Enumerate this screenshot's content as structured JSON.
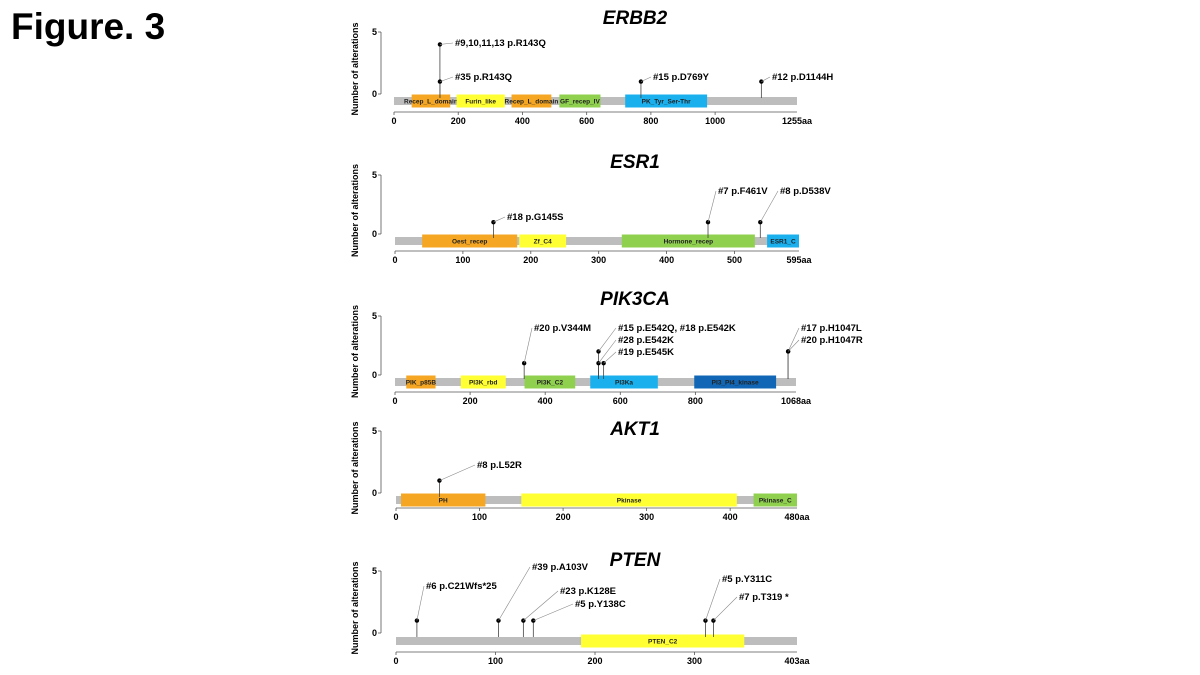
{
  "figure_label": "Figure. 3",
  "y_axis_label": "Number of alterations",
  "y_ticks": [
    0,
    5
  ],
  "panels": [
    {
      "gene": "ERBB2",
      "length": 1255,
      "length_label": "1255aa",
      "x_ticks": [
        0,
        200,
        400,
        600,
        800,
        1000
      ],
      "domains": [
        {
          "name": "Recep_L_domain",
          "start": 55,
          "end": 175,
          "color": "#f5a623"
        },
        {
          "name": "Furin_like",
          "start": 195,
          "end": 345,
          "color": "#ffff33"
        },
        {
          "name": "Recep_L_domain",
          "start": 366,
          "end": 490,
          "color": "#f5a623"
        },
        {
          "name": "GF_recep_IV",
          "start": 515,
          "end": 643,
          "color": "#8fd14f"
        },
        {
          "name": "PK_Tyr_Ser-Thr",
          "start": 720,
          "end": 975,
          "color": "#1ab0ee"
        }
      ],
      "mutations": [
        {
          "pos": 143,
          "count": 4,
          "label": "#9,10,11,13 p.R143Q"
        },
        {
          "pos": 143,
          "count": 1,
          "label": "#35 p.R143Q"
        },
        {
          "pos": 769,
          "count": 1,
          "label": "#15 p.D769Y"
        },
        {
          "pos": 1144,
          "count": 1,
          "label": "#12 p.D1144H"
        }
      ]
    },
    {
      "gene": "ESR1",
      "length": 595,
      "length_label": "595aa",
      "x_ticks": [
        0,
        100,
        200,
        300,
        400,
        500
      ],
      "domains": [
        {
          "name": "Oest_recep",
          "start": 40,
          "end": 180,
          "color": "#f5a623"
        },
        {
          "name": "Zf_C4",
          "start": 183,
          "end": 252,
          "color": "#ffff33"
        },
        {
          "name": "Hormone_recep",
          "start": 334,
          "end": 530,
          "color": "#8fd14f"
        },
        {
          "name": "ESR1_C",
          "start": 548,
          "end": 595,
          "color": "#1ab0ee"
        }
      ],
      "mutations": [
        {
          "pos": 145,
          "count": 1,
          "label": "#18 p.G145S"
        },
        {
          "pos": 461,
          "count": 1,
          "label": "#7 p.F461V"
        },
        {
          "pos": 538,
          "count": 1,
          "label": "#8 p.D538V"
        }
      ]
    },
    {
      "gene": "PIK3CA",
      "length": 1068,
      "length_label": "1068aa",
      "x_ticks": [
        0,
        200,
        400,
        600,
        800
      ],
      "domains": [
        {
          "name": "PIK_p85B",
          "start": 30,
          "end": 108,
          "color": "#f5a623"
        },
        {
          "name": "PI3K_rbd",
          "start": 175,
          "end": 295,
          "color": "#ffff33"
        },
        {
          "name": "PI3K_C2",
          "start": 345,
          "end": 480,
          "color": "#8fd14f"
        },
        {
          "name": "PI3Ka",
          "start": 520,
          "end": 700,
          "color": "#1ab0ee"
        },
        {
          "name": "PI3_PI4_kinase",
          "start": 797,
          "end": 1015,
          "color": "#1167b5"
        }
      ],
      "mutations": [
        {
          "pos": 344,
          "count": 1,
          "label": "#20 p.V344M"
        },
        {
          "pos": 542,
          "count": 2,
          "label": "#15 p.E542Q, #18 p.E542K"
        },
        {
          "pos": 542,
          "count": 1,
          "label": "#28 p.E542K"
        },
        {
          "pos": 545,
          "count": 1,
          "label": "#19 p.E545K"
        },
        {
          "pos": 1047,
          "count": 2,
          "label": "#17 p.H1047L"
        },
        {
          "pos": 1047,
          "count": 2,
          "label": "#20 p.H1047R"
        }
      ]
    },
    {
      "gene": "AKT1",
      "length": 480,
      "length_label": "480aa",
      "x_ticks": [
        0,
        100,
        200,
        300,
        400
      ],
      "domains": [
        {
          "name": "PH",
          "start": 6,
          "end": 107,
          "color": "#f5a623"
        },
        {
          "name": "Pkinase",
          "start": 150,
          "end": 408,
          "color": "#ffff33"
        },
        {
          "name": "Pkinase_C",
          "start": 428,
          "end": 480,
          "color": "#8fd14f"
        }
      ],
      "mutations": [
        {
          "pos": 52,
          "count": 1,
          "label": "#8 p.L52R"
        }
      ]
    },
    {
      "gene": "PTEN",
      "length": 403,
      "length_label": "403aa",
      "x_ticks": [
        0,
        100,
        200,
        300
      ],
      "domains": [
        {
          "name": "PTEN_C2",
          "start": 186,
          "end": 350,
          "color": "#ffff33"
        }
      ],
      "mutations": [
        {
          "pos": 21,
          "count": 1,
          "label": "#6 p.C21Wfs*25"
        },
        {
          "pos": 103,
          "count": 1,
          "label": "#39 p.A103V"
        },
        {
          "pos": 128,
          "count": 1,
          "label": "#23 p.K128E"
        },
        {
          "pos": 138,
          "count": 1,
          "label": "#5 p.Y138C"
        },
        {
          "pos": 311,
          "count": 1,
          "label": "#5 p.Y311C"
        },
        {
          "pos": 319,
          "count": 1,
          "label": "#7 p.T319 *"
        }
      ]
    }
  ]
}
